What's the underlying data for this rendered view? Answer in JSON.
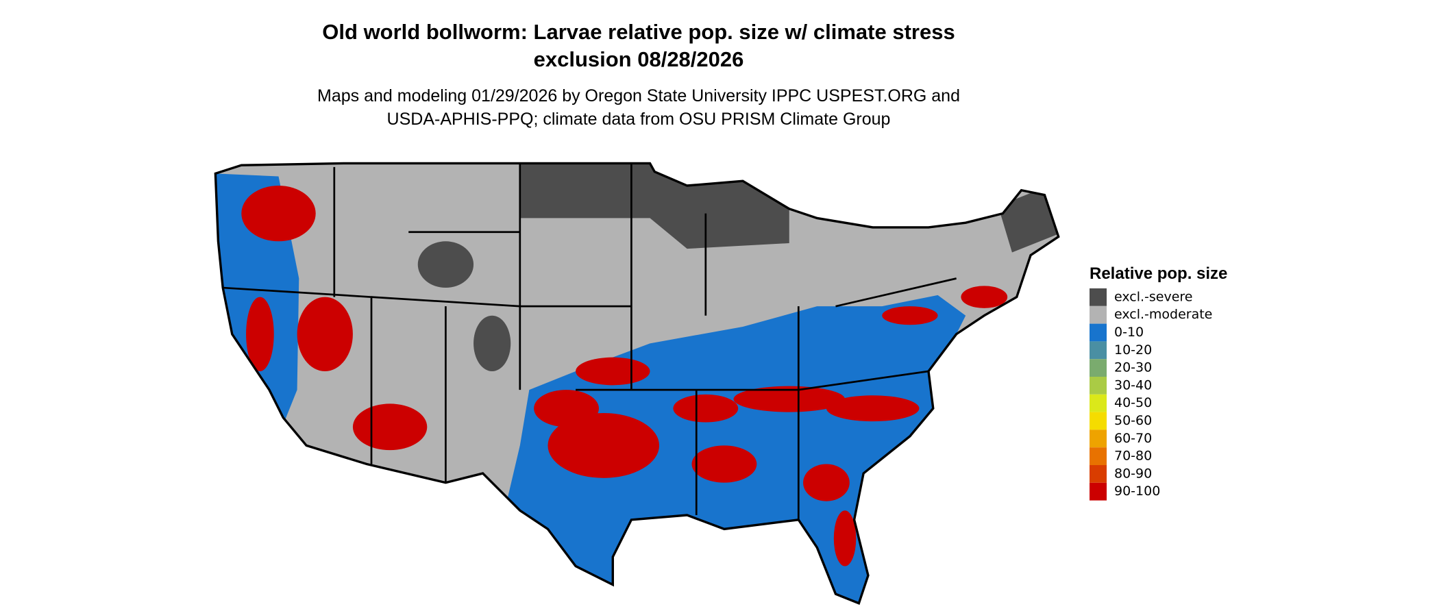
{
  "map": {
    "title_lines": [
      "Old world bollworm: Larvae relative pop. size w/ climate stress",
      "exclusion 08/28/2026"
    ],
    "subtitle_lines": [
      "Maps and modeling 01/29/2026 by Oregon State University IPPC USPEST.ORG and",
      "USDA-APHIS-PPQ; climate data from OSU PRISM Climate Group"
    ],
    "legend": {
      "title": "Relative pop. size",
      "items": [
        {
          "label": "excl.-severe",
          "color": "#4d4d4d"
        },
        {
          "label": "excl.-moderate",
          "color": "#b3b3b3"
        },
        {
          "label": "0-10",
          "color": "#1874cd"
        },
        {
          "label": "10-20",
          "color": "#4a8fa3"
        },
        {
          "label": "20-30",
          "color": "#7aab6e"
        },
        {
          "label": "30-40",
          "color": "#aacb45"
        },
        {
          "label": "40-50",
          "color": "#dbe81a"
        },
        {
          "label": "50-60",
          "color": "#f5dc00"
        },
        {
          "label": "60-70",
          "color": "#eea300"
        },
        {
          "label": "70-80",
          "color": "#e87200"
        },
        {
          "label": "80-90",
          "color": "#d93d00"
        },
        {
          "label": "90-100",
          "color": "#cc0000"
        }
      ]
    }
  }
}
